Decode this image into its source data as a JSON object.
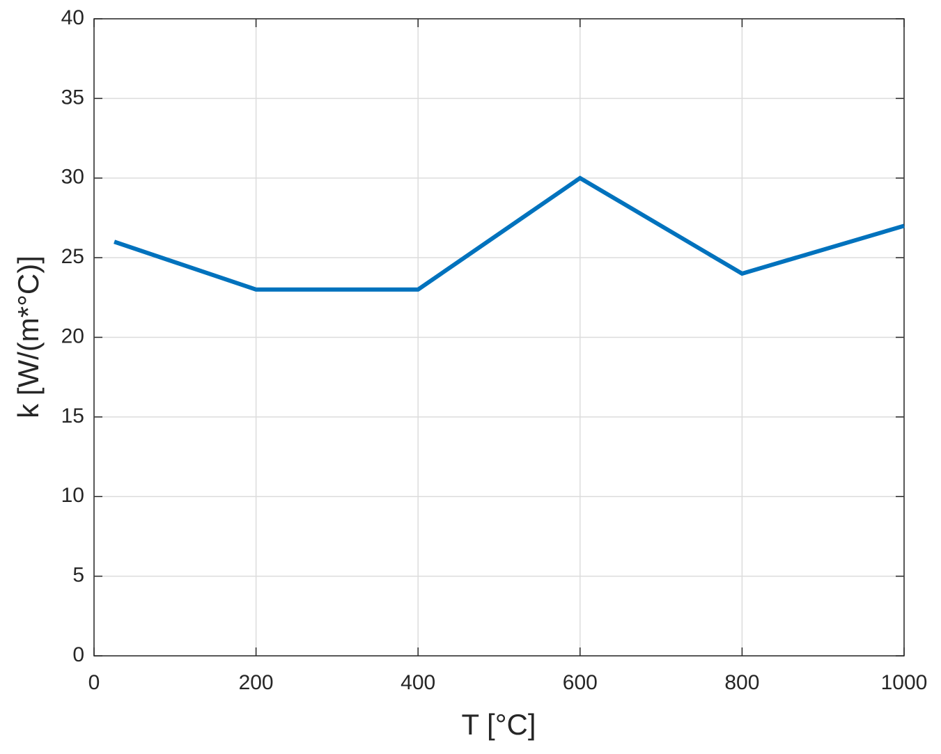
{
  "chart_data": {
    "type": "line",
    "xlabel": "T [°C]",
    "ylabel": "k [W/(m*°C)]",
    "x": [
      25,
      200,
      400,
      600,
      800,
      1000
    ],
    "series": [
      {
        "color": "#0072bd",
        "values": [
          26,
          23,
          23,
          30,
          24,
          27
        ]
      }
    ],
    "xlim": [
      0,
      1000
    ],
    "xticks": [
      0,
      200,
      400,
      600,
      800,
      1000
    ],
    "ylim": [
      0,
      40
    ],
    "yticks": [
      0,
      5,
      10,
      15,
      20,
      25,
      30,
      35,
      40
    ],
    "grid": true
  }
}
